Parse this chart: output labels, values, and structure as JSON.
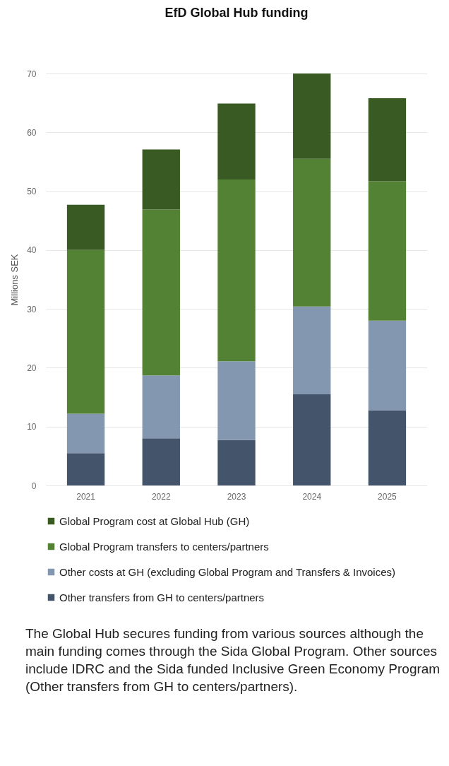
{
  "chart_data": {
    "type": "bar",
    "title": "EfD Global Hub funding",
    "ylabel": "Millions SEK",
    "categories": [
      "2021",
      "2022",
      "2023",
      "2024",
      "2025"
    ],
    "stacked": true,
    "ylim": [
      0,
      70
    ],
    "yticks": [
      0,
      10,
      20,
      30,
      40,
      50,
      60,
      70
    ],
    "grid": "y",
    "legend": "bottom",
    "series": [
      {
        "name": "Other transfers from GH to centers/partners",
        "color": "#44546a",
        "values": [
          5.5,
          8.0,
          7.7,
          15.5,
          12.8
        ]
      },
      {
        "name": "Other costs at GH (excluding Global Program and Transfers & Invoices)",
        "color": "#8497b0",
        "values": [
          6.7,
          10.7,
          13.4,
          14.9,
          15.2
        ]
      },
      {
        "name": "Global Program transfers to centers/partners",
        "color": "#548235",
        "values": [
          27.8,
          28.2,
          30.9,
          25.1,
          23.7
        ]
      },
      {
        "name": "Global Program cost at Global Hub (GH)",
        "color": "#3a5a24",
        "values": [
          7.7,
          10.2,
          12.9,
          14.5,
          14.1
        ]
      }
    ],
    "annotations": [
      "The Global Hub secures funding from various sources although the main funding comes through the Sida Global Program. Other sources include IDRC and the Sida funded Inclusive Green Economy Program (Other transfers from GH to centers/partners)."
    ]
  }
}
